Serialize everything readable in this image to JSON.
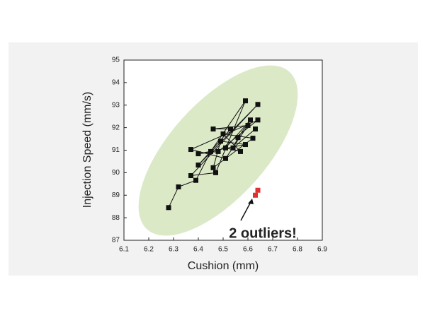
{
  "chart_data": {
    "type": "scatter",
    "x_label": "Cushion (mm)",
    "y_label": "Injection Speed (mm/s)",
    "annotation": "2 outliers!",
    "xlim": [
      6.1,
      6.9
    ],
    "xticks": [
      6.1,
      6.2,
      6.3,
      6.4,
      6.5,
      6.6,
      6.7,
      6.8,
      6.9
    ],
    "ylim": [
      87,
      95
    ],
    "yticks": [
      87,
      88,
      89,
      90,
      91,
      92,
      93,
      94,
      95
    ],
    "connected": true,
    "series": [
      {
        "color": "#111111",
        "x": [
          6.28,
          6.32,
          6.39,
          6.45,
          6.59,
          6.47,
          6.37,
          6.64,
          6.4,
          6.53,
          6.46,
          6.6,
          6.51,
          6.37,
          6.64,
          6.48,
          6.4,
          6.59,
          6.49,
          6.46,
          6.62,
          6.5,
          6.57,
          6.51,
          6.61,
          6.56,
          6.54,
          6.63
        ],
        "y": [
          88.45,
          89.37,
          89.66,
          90.94,
          93.19,
          90.0,
          89.87,
          93.03,
          90.34,
          91.94,
          91.94,
          92.1,
          90.63,
          91.03,
          92.34,
          90.94,
          90.84,
          91.25,
          91.4,
          90.22,
          91.53,
          91.72,
          90.94,
          91.1,
          92.34,
          91.56,
          91.1,
          91.94
        ]
      },
      {
        "color": "#e03030",
        "x": [
          6.64,
          6.63
        ],
        "y": [
          89.22,
          89.0
        ]
      }
    ]
  }
}
